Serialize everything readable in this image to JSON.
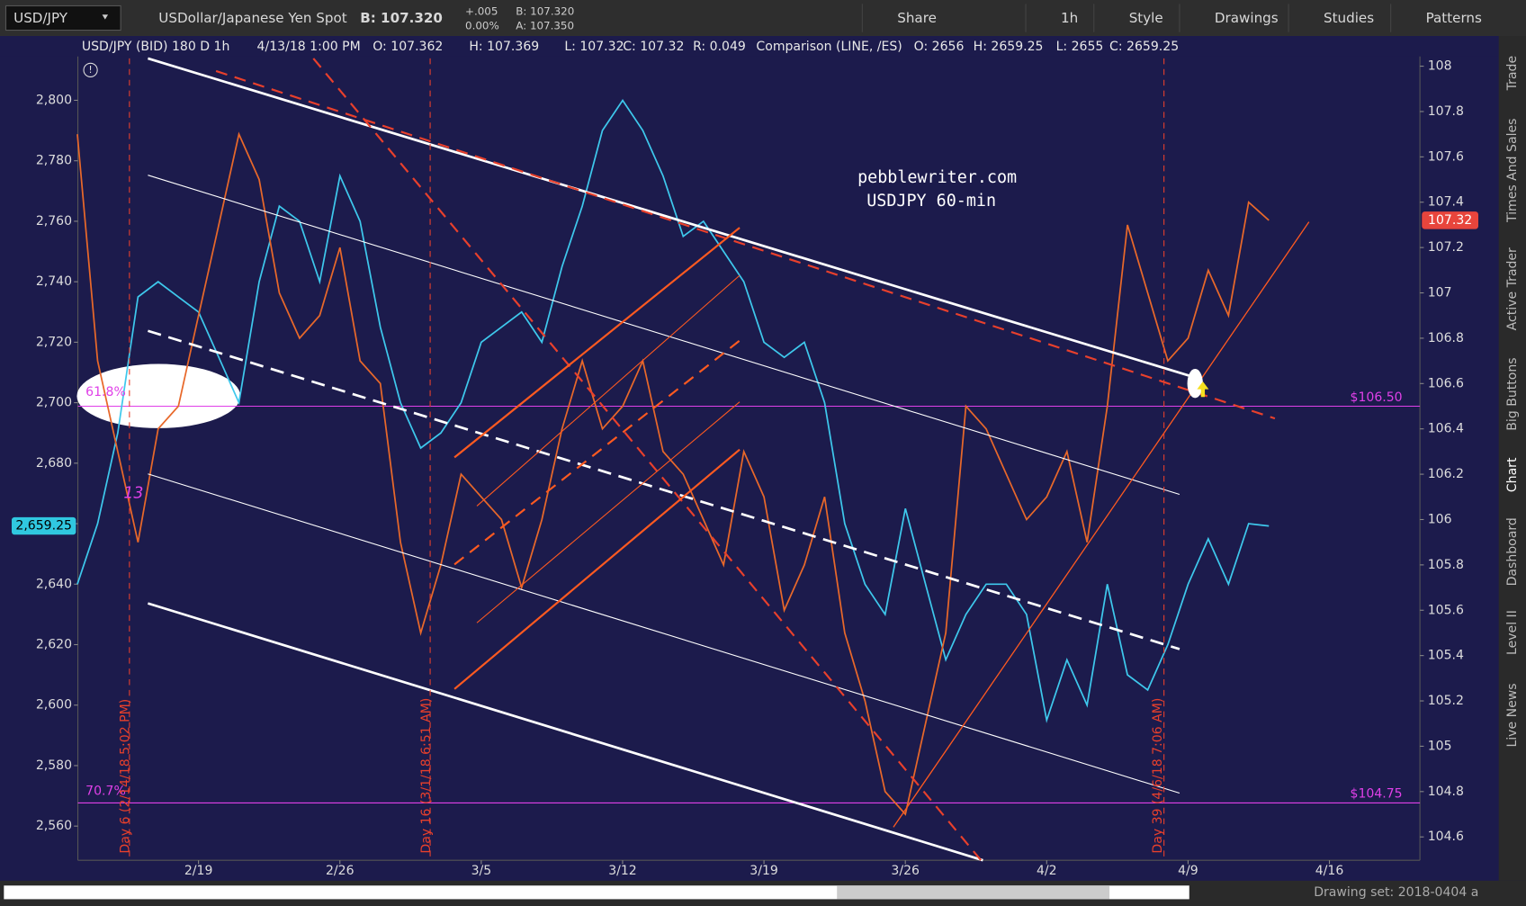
{
  "toolbar": {
    "symbol": "USD/JPY",
    "description": "USDollar/Japanese Yen Spot",
    "bid": "B: 107.320",
    "change": "+.005",
    "change_pct": "0.00%",
    "bid_small": "B: 107.320",
    "ask": "A: 107.350",
    "buttons": [
      "Share",
      "1h",
      "Style",
      "Drawings",
      "Studies",
      "Patterns"
    ]
  },
  "header": {
    "study": "USD/JPY (BID) 180 D 1h",
    "time": "4/13/18 1:00 PM",
    "open": "O: 107.362",
    "high": "H: 107.369",
    "low": "L: 107.32",
    "close": "C: 107.32",
    "range": "R: 0.049",
    "comparison": "Comparison (LINE, /ES)",
    "comp_open": "O: 2656",
    "comp_high": "H: 2659.25",
    "comp_low": "L: 2655",
    "comp_close": "C: 2659.25"
  },
  "sidebar": [
    "Trade",
    "Times And Sales",
    "Active Trader",
    "Big Buttons",
    "Chart",
    "Dashboard",
    "Level II",
    "Live News"
  ],
  "footer": {
    "drawing_set": "Drawing set: 2018-0404 a"
  },
  "chart_data": {
    "type": "line",
    "annotations": {
      "site": "pebblewriter.com",
      "subtitle": "USDJPY 60-min",
      "fib_1": "61.8%",
      "fib_2": "70.7%",
      "count": "13",
      "day_6": "Day 6 (2/14/18 5:02 PM)",
      "day_16": "Day 16 (3/1/18 6:51 AM)",
      "day_39": "Day 39 (4/6/18 7:06 AM)"
    },
    "categories": [
      null,
      null,
      null,
      null,
      null,
      null,
      "2/19",
      null,
      null,
      null,
      null,
      null,
      null,
      "2/26",
      null,
      null,
      null,
      null,
      null,
      null,
      "3/5",
      null,
      null,
      null,
      null,
      null,
      null,
      "3/12",
      null,
      null,
      null,
      null,
      null,
      null,
      "3/19",
      null,
      null,
      null,
      null,
      null,
      null,
      "3/26",
      null,
      null,
      null,
      null,
      null,
      null,
      "4/2",
      null,
      null,
      null,
      null,
      null,
      null,
      "4/9",
      null,
      null,
      null,
      null,
      null,
      null,
      "4/16"
    ],
    "series": [
      {
        "name": "/ES",
        "color": "#3ec8ec",
        "axis": "y",
        "last_label": "2,659.25",
        "values": [
          2640,
          2660,
          2690,
          2735,
          2740,
          2735,
          2730,
          2715,
          2700,
          2740,
          2765,
          2760,
          2740,
          2775,
          2760,
          2725,
          2700,
          2685,
          2690,
          2700,
          2720,
          2725,
          2730,
          2720,
          2745,
          2765,
          2790,
          2800,
          2790,
          2775,
          2755,
          2760,
          2750,
          2740,
          2720,
          2715,
          2720,
          2700,
          2660,
          2640,
          2630,
          2665,
          2640,
          2615,
          2630,
          2640,
          2640,
          2630,
          2595,
          2615,
          2600,
          2640,
          2610,
          2605,
          2620,
          2640,
          2655,
          2640,
          2660,
          2659.25,
          null,
          null,
          null
        ]
      },
      {
        "name": "USD/JPY",
        "color": "#e8682a",
        "axis": "y2",
        "last_label": "107.32",
        "values": [
          107.7,
          106.7,
          106.3,
          105.9,
          106.4,
          106.5,
          106.9,
          107.3,
          107.7,
          107.5,
          107.0,
          106.8,
          106.9,
          107.2,
          106.7,
          106.6,
          105.9,
          105.5,
          105.8,
          106.2,
          106.1,
          106.0,
          105.7,
          106.0,
          106.4,
          106.7,
          106.4,
          106.5,
          106.7,
          106.3,
          106.2,
          106.0,
          105.8,
          106.3,
          106.1,
          105.6,
          105.8,
          106.1,
          105.5,
          105.2,
          104.8,
          104.7,
          105.1,
          105.5,
          106.5,
          106.4,
          106.2,
          106.0,
          106.1,
          106.3,
          105.9,
          106.5,
          107.3,
          107.0,
          106.7,
          106.8,
          107.1,
          106.9,
          107.4,
          107.32,
          null,
          null,
          null
        ]
      }
    ],
    "ylim": [
      2548.7,
      2814.5
    ],
    "yticks": [
      {
        "value": 2560,
        "label": "2,560"
      },
      {
        "value": 2580,
        "label": "2,580"
      },
      {
        "value": 2600,
        "label": "2,600"
      },
      {
        "value": 2620,
        "label": "2,620"
      },
      {
        "value": 2640,
        "label": "2,640"
      },
      {
        "value": 2660,
        "label": "2,660"
      },
      {
        "value": 2680,
        "label": "2,680"
      },
      {
        "value": 2700,
        "label": "2,700"
      },
      {
        "value": 2720,
        "label": "2,720"
      },
      {
        "value": 2740,
        "label": "2,740"
      },
      {
        "value": 2760,
        "label": "2,760"
      },
      {
        "value": 2780,
        "label": "2,780"
      },
      {
        "value": 2800,
        "label": "2,800"
      }
    ],
    "y2lim": [
      104.497,
      108.043
    ],
    "y2ticks": [
      104.6,
      104.8,
      105,
      105.2,
      105.4,
      105.6,
      105.8,
      106,
      106.2,
      106.4,
      106.6,
      106.8,
      107,
      107.2,
      107.4,
      107.6,
      107.8,
      108
    ],
    "levels": [
      {
        "value": 106.5,
        "label": "$106.50",
        "color": "#e040e8"
      },
      {
        "value": 104.75,
        "label": "$104.75",
        "color": "#e040e8"
      }
    ],
    "grid": false
  }
}
